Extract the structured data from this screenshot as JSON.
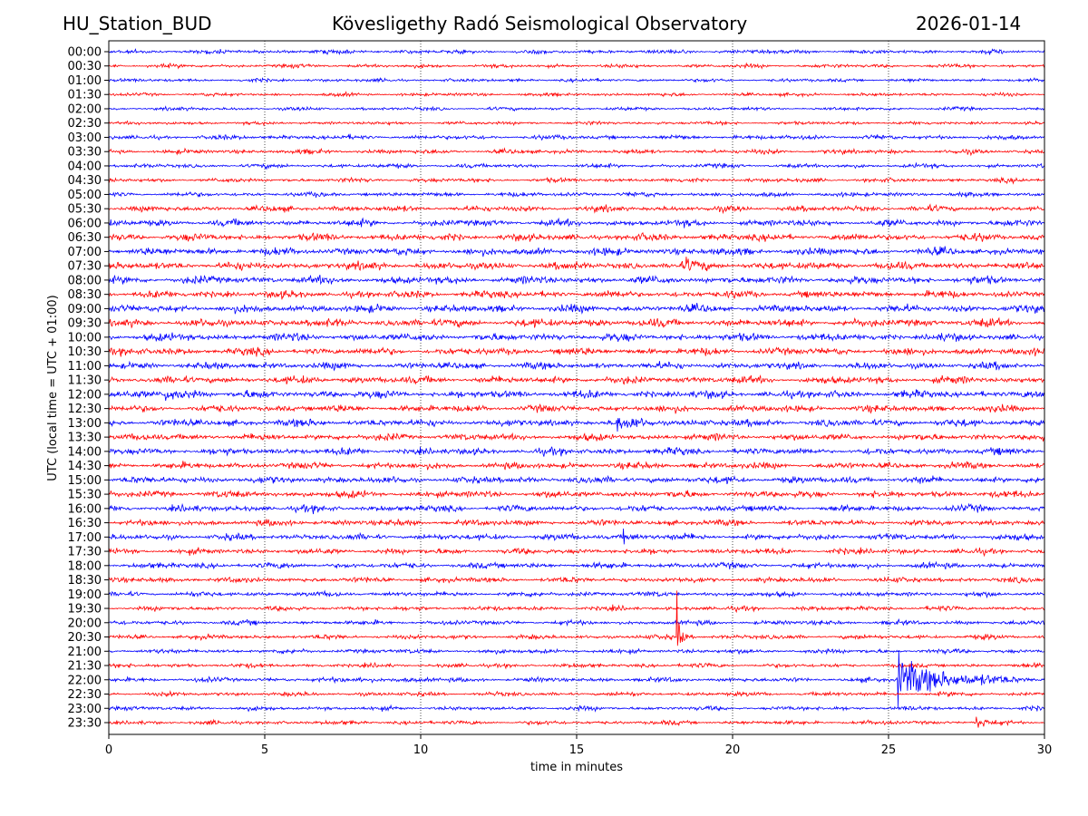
{
  "header": {
    "station": "HU_Station_BUD",
    "observatory": "Kövesligethy Radó Seismological Observatory",
    "date": "2026-01-14"
  },
  "chart_data": {
    "type": "line",
    "title": "Kövesligethy Radó Seismological Observatory",
    "xlabel": "time in minutes",
    "ylabel": "UTC (local time = UTC + 01:00)",
    "xlim": [
      0,
      30
    ],
    "xticks": [
      0,
      5,
      10,
      15,
      20,
      25,
      30
    ],
    "grid": "vertical dotted at x ticks",
    "colors": [
      "#0000ff",
      "#ff0000"
    ],
    "rows": [
      "00:00",
      "00:30",
      "01:00",
      "01:30",
      "02:00",
      "02:30",
      "03:00",
      "03:30",
      "04:00",
      "04:30",
      "05:00",
      "05:30",
      "06:00",
      "06:30",
      "07:00",
      "07:30",
      "08:00",
      "08:30",
      "09:00",
      "09:30",
      "10:00",
      "10:30",
      "11:00",
      "11:30",
      "12:00",
      "12:30",
      "13:00",
      "13:30",
      "14:00",
      "14:30",
      "15:00",
      "15:30",
      "16:00",
      "16:30",
      "17:00",
      "17:30",
      "18:00",
      "18:30",
      "19:00",
      "19:30",
      "20:00",
      "20:30",
      "21:00",
      "21:30",
      "22:00",
      "22:30",
      "23:00",
      "23:30"
    ],
    "noise_amplitude": [
      2.2,
      2,
      1.8,
      1.8,
      1.8,
      1.8,
      2.4,
      2.4,
      2.2,
      2.2,
      2.4,
      3,
      3.4,
      3.8,
      4,
      4,
      4,
      3.8,
      4,
      4.2,
      4,
      3.8,
      3.6,
      3.8,
      4,
      3.6,
      3.8,
      3.6,
      3.6,
      3.4,
      3.6,
      3.6,
      3.4,
      3.2,
      3.2,
      3,
      3,
      2.8,
      2.6,
      2.4,
      2.4,
      2.4,
      2.4,
      2.2,
      2.4,
      2.2,
      2.2,
      2.2
    ],
    "events": [
      {
        "row": "20:30",
        "minute": 18.2,
        "amplitude": 36,
        "decay_minutes": 0.15
      },
      {
        "row": "22:00",
        "minute": 25.3,
        "amplitude": 38,
        "decay_minutes": 1.4
      },
      {
        "row": "23:30",
        "minute": 27.8,
        "amplitude": 14,
        "decay_minutes": 0.2
      },
      {
        "row": "12:00",
        "minute": 1.8,
        "amplitude": 7,
        "decay_minutes": 0.6
      },
      {
        "row": "13:00",
        "minute": 16.3,
        "amplitude": 6,
        "decay_minutes": 0.8
      },
      {
        "row": "17:00",
        "minute": 16.5,
        "amplitude": 5,
        "decay_minutes": 0.6
      },
      {
        "row": "22:00",
        "minute": 8.0,
        "amplitude": 5,
        "decay_minutes": 0.6
      },
      {
        "row": "07:30",
        "minute": 18.5,
        "amplitude": 5,
        "decay_minutes": 0.6
      }
    ]
  }
}
